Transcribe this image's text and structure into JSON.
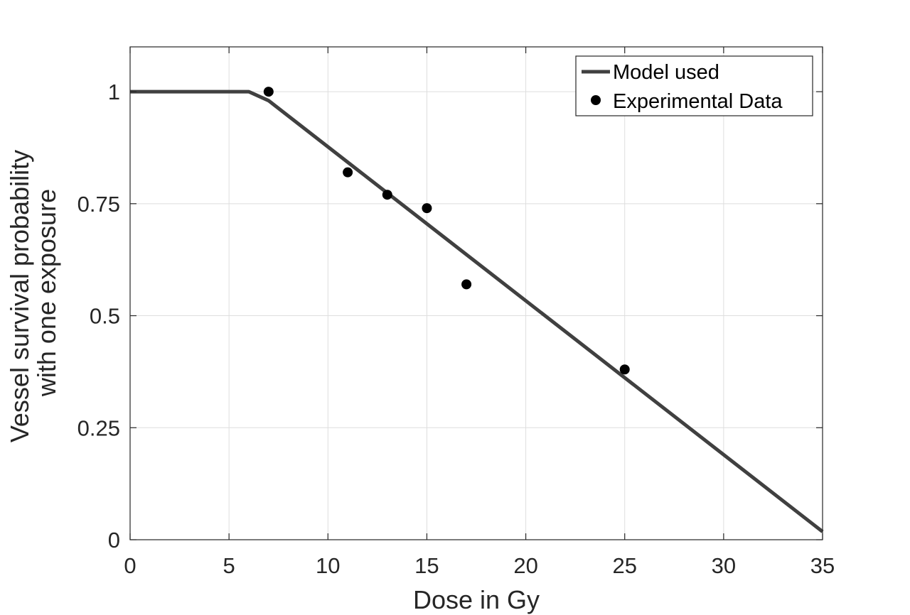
{
  "chart_data": {
    "type": "line",
    "title": "",
    "xlabel": "Dose in Gy",
    "ylabel_lines": [
      "Vessel survival probability",
      "with one exposure"
    ],
    "xlim": [
      0,
      35
    ],
    "ylim": [
      0,
      1.1
    ],
    "x_ticks": [
      0,
      5,
      10,
      15,
      20,
      25,
      30,
      35
    ],
    "y_ticks": [
      0,
      0.25,
      0.5,
      0.75,
      1
    ],
    "x_tick_labels": [
      "0",
      "5",
      "10",
      "15",
      "20",
      "25",
      "30",
      "35"
    ],
    "y_tick_labels": [
      "0",
      "0.25",
      "0.5",
      "0.75",
      "1"
    ],
    "grid": true,
    "legend_position": "top-right",
    "series": [
      {
        "name": "Model used",
        "kind": "line",
        "color": "#404040",
        "x": [
          0,
          6,
          7,
          35
        ],
        "y": [
          1.0,
          1.0,
          0.98,
          0.018
        ]
      },
      {
        "name": "Experimental Data",
        "kind": "scatter",
        "color": "#000000",
        "x": [
          7,
          11,
          13,
          15,
          17,
          25
        ],
        "y": [
          1.0,
          0.82,
          0.77,
          0.74,
          0.57,
          0.38
        ]
      }
    ]
  }
}
